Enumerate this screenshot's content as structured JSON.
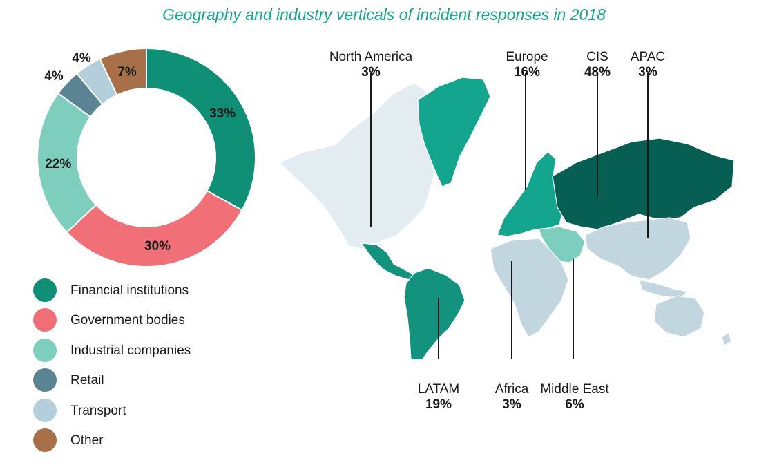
{
  "title": "Geography and industry verticals of incident responses in 2018",
  "colors": {
    "financial": "#0e8f76",
    "government": "#f17078",
    "industrial": "#7ecebe",
    "retail": "#5a8494",
    "transport": "#b4cedc",
    "other": "#a87048",
    "cis": "#075e52",
    "europe": "#13a58d",
    "latam": "#13937e",
    "middle_east": "#7ecebe",
    "light_region": "#c2d6e0",
    "north_america": "#e3ecf1",
    "line": "#1a1a1a"
  },
  "chart_data": [
    {
      "type": "pie",
      "variant": "donut",
      "categories": [
        "Financial institutions",
        "Government bodies",
        "Industrial companies",
        "Retail",
        "Transport",
        "Other"
      ],
      "values": [
        33,
        30,
        22,
        4,
        4,
        7
      ],
      "labels": [
        "33%",
        "30%",
        "22%",
        "4%",
        "4%",
        "7%"
      ],
      "legend_position": "bottom"
    },
    {
      "type": "map",
      "regions": [
        {
          "name": "North America",
          "value": 3,
          "label": "3%"
        },
        {
          "name": "Europe",
          "value": 16,
          "label": "16%"
        },
        {
          "name": "CIS",
          "value": 48,
          "label": "48%"
        },
        {
          "name": "APAC",
          "value": 3,
          "label": "3%"
        },
        {
          "name": "LATAM",
          "value": 19,
          "label": "19%"
        },
        {
          "name": "Africa",
          "value": 3,
          "label": "3%"
        },
        {
          "name": "Middle East",
          "value": 6,
          "label": "6%"
        }
      ]
    }
  ]
}
